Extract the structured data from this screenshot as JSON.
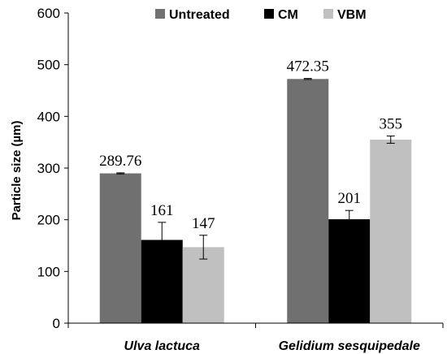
{
  "chart_data": {
    "type": "bar",
    "title": "",
    "xlabel": "",
    "ylabel": "Particle size (µm)",
    "ylim": [
      0,
      600
    ],
    "yticks": [
      0,
      100,
      200,
      300,
      400,
      500,
      600
    ],
    "grid": false,
    "legend_position": "top",
    "categories": [
      "Ulva lactuca",
      "Gelidium sesquipedale"
    ],
    "series": [
      {
        "name": "Untreated",
        "color": "#707070",
        "values": [
          289.76,
          472.35
        ],
        "errors": [
          1,
          1
        ],
        "labels": [
          "289.76",
          "472.35"
        ]
      },
      {
        "name": "CM",
        "color": "#000000",
        "values": [
          161,
          201
        ],
        "errors": [
          34,
          17
        ],
        "labels": [
          "161",
          "201"
        ]
      },
      {
        "name": "VBM",
        "color": "#c0c0c0",
        "values": [
          147,
          355
        ],
        "errors": [
          23,
          7
        ],
        "labels": [
          "147",
          "355"
        ]
      }
    ]
  }
}
